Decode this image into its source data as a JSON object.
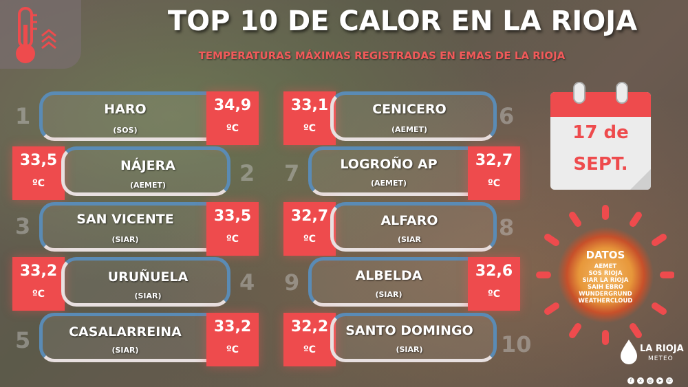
{
  "header": {
    "title": "TOP 10 DE CALOR EN LA RIOJA",
    "subtitle": "TEMPERATURAS MÁXIMAS REGISTRADAS EN EMAS DE LA RIOJA"
  },
  "unit": "ºC",
  "stations": [
    {
      "rank": "1",
      "name": "HARO",
      "source": "(SOS)",
      "temp": "34,9"
    },
    {
      "rank": "2",
      "name": "NÁJERA",
      "source": "(AEMET)",
      "temp": "33,5"
    },
    {
      "rank": "3",
      "name": "SAN VICENTE",
      "source": "(SIAR)",
      "temp": "33,5"
    },
    {
      "rank": "4",
      "name": "URUÑUELA",
      "source": "(SIAR)",
      "temp": "33,2"
    },
    {
      "rank": "5",
      "name": "CASALARREINA",
      "source": "(SIAR)",
      "temp": "33,2"
    },
    {
      "rank": "6",
      "name": "CENICERO",
      "source": "(AEMET)",
      "temp": "33,1"
    },
    {
      "rank": "7",
      "name": "LOGROÑO AP",
      "source": "(AEMET)",
      "temp": "32,7"
    },
    {
      "rank": "8",
      "name": "ALFARO",
      "source": "(SIAR",
      "temp": "32,7"
    },
    {
      "rank": "9",
      "name": "ALBELDA",
      "source": "(SIAR)",
      "temp": "32,6"
    },
    {
      "rank": "10",
      "name": "SANTO DOMINGO",
      "source": "(SIAR)",
      "temp": "32,2"
    }
  ],
  "calendar": {
    "line1": "17 de",
    "line2": "SEPT."
  },
  "datos": {
    "title": "DATOS",
    "sources": [
      "AEMET",
      "SOS RIOJA",
      "SIAR LA RIOJA",
      "SAIH EBRO",
      "WUNDERGRUND",
      "WEATHERCLOUD"
    ]
  },
  "brand": {
    "name": "LA RIOJA",
    "sub": "METEO"
  },
  "colors": {
    "accent_red": "#ee4b4d",
    "title_red": "#f15a5a",
    "pill_blue": "#5a8bb5"
  },
  "icons": [
    "thermometer-icon",
    "heat-arrows-icon",
    "calendar-icon",
    "sun-icon",
    "facebook-icon",
    "x-icon",
    "instagram-icon",
    "telegram-icon",
    "whatsapp-icon"
  ]
}
